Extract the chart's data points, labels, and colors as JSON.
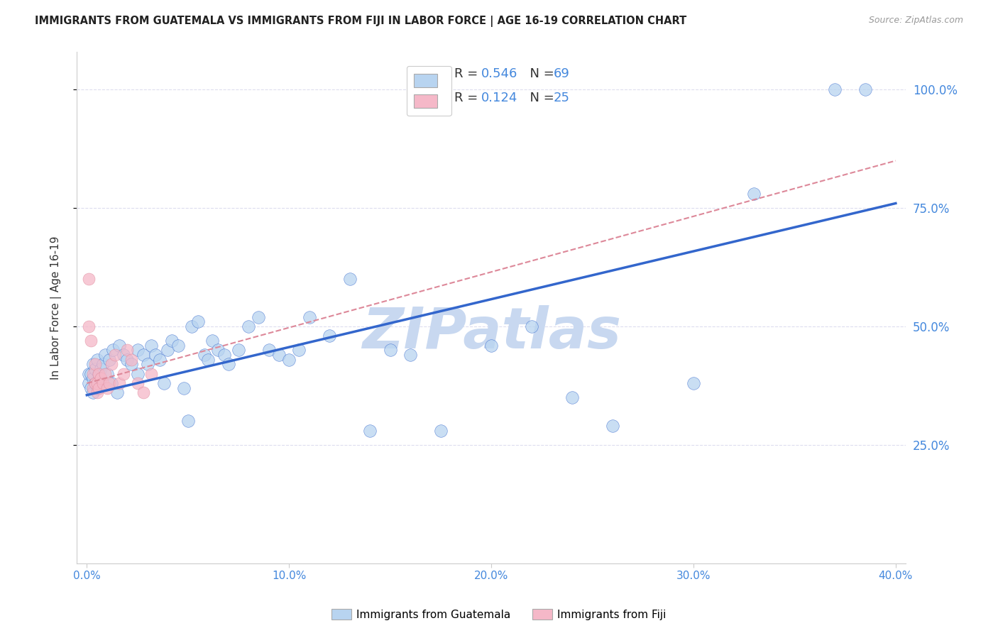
{
  "title": "IMMIGRANTS FROM GUATEMALA VS IMMIGRANTS FROM FIJI IN LABOR FORCE | AGE 16-19 CORRELATION CHART",
  "source": "Source: ZipAtlas.com",
  "ylabel": "In Labor Force | Age 16-19",
  "x_tick_labels": [
    "0.0%",
    "10.0%",
    "20.0%",
    "30.0%",
    "40.0%"
  ],
  "x_tick_values": [
    0.0,
    0.1,
    0.2,
    0.3,
    0.4
  ],
  "y_tick_labels": [
    "25.0%",
    "50.0%",
    "75.0%",
    "100.0%"
  ],
  "y_tick_values": [
    0.25,
    0.5,
    0.75,
    1.0
  ],
  "xlim": [
    -0.005,
    0.405
  ],
  "ylim": [
    0.0,
    1.08
  ],
  "color_guatemala": "#b8d4f0",
  "color_fiji": "#f5b8c8",
  "color_line_guatemala": "#3366cc",
  "color_line_fiji": "#dd8899",
  "color_ticks_blue": "#4488dd",
  "watermark": "ZIPatlas",
  "watermark_color": "#c8d8f0",
  "legend_label1": "Immigrants from Guatemala",
  "legend_label2": "Immigrants from Fiji",
  "guatemala_x": [
    0.001,
    0.001,
    0.002,
    0.002,
    0.003,
    0.003,
    0.003,
    0.004,
    0.004,
    0.005,
    0.005,
    0.006,
    0.006,
    0.007,
    0.007,
    0.008,
    0.009,
    0.01,
    0.011,
    0.012,
    0.013,
    0.015,
    0.016,
    0.018,
    0.02,
    0.022,
    0.025,
    0.025,
    0.028,
    0.03,
    0.032,
    0.034,
    0.036,
    0.038,
    0.04,
    0.042,
    0.045,
    0.048,
    0.05,
    0.052,
    0.055,
    0.058,
    0.06,
    0.062,
    0.065,
    0.068,
    0.07,
    0.075,
    0.08,
    0.085,
    0.09,
    0.095,
    0.1,
    0.105,
    0.11,
    0.12,
    0.13,
    0.14,
    0.15,
    0.16,
    0.175,
    0.2,
    0.22,
    0.24,
    0.26,
    0.3,
    0.33,
    0.37,
    0.385
  ],
  "guatemala_y": [
    0.38,
    0.4,
    0.37,
    0.4,
    0.36,
    0.39,
    0.42,
    0.38,
    0.41,
    0.37,
    0.43,
    0.4,
    0.38,
    0.41,
    0.39,
    0.42,
    0.44,
    0.4,
    0.43,
    0.38,
    0.45,
    0.36,
    0.46,
    0.44,
    0.43,
    0.42,
    0.4,
    0.45,
    0.44,
    0.42,
    0.46,
    0.44,
    0.43,
    0.38,
    0.45,
    0.47,
    0.46,
    0.37,
    0.3,
    0.5,
    0.51,
    0.44,
    0.43,
    0.47,
    0.45,
    0.44,
    0.42,
    0.45,
    0.5,
    0.52,
    0.45,
    0.44,
    0.43,
    0.45,
    0.52,
    0.48,
    0.6,
    0.28,
    0.45,
    0.44,
    0.28,
    0.46,
    0.5,
    0.35,
    0.29,
    0.38,
    0.78,
    1.0,
    1.0
  ],
  "fiji_x": [
    0.001,
    0.001,
    0.002,
    0.003,
    0.003,
    0.004,
    0.004,
    0.005,
    0.005,
    0.006,
    0.006,
    0.007,
    0.008,
    0.009,
    0.01,
    0.011,
    0.012,
    0.014,
    0.016,
    0.018,
    0.02,
    0.022,
    0.025,
    0.028,
    0.032
  ],
  "fiji_y": [
    0.5,
    0.6,
    0.47,
    0.37,
    0.4,
    0.38,
    0.42,
    0.36,
    0.38,
    0.4,
    0.37,
    0.39,
    0.38,
    0.4,
    0.37,
    0.38,
    0.42,
    0.44,
    0.38,
    0.4,
    0.45,
    0.43,
    0.38,
    0.36,
    0.4
  ],
  "guat_line_x0": 0.0,
  "guat_line_y0": 0.355,
  "guat_line_x1": 0.4,
  "guat_line_y1": 0.76,
  "fiji_line_x0": 0.0,
  "fiji_line_y0": 0.38,
  "fiji_line_x1": 0.04,
  "fiji_line_y1": 0.435
}
